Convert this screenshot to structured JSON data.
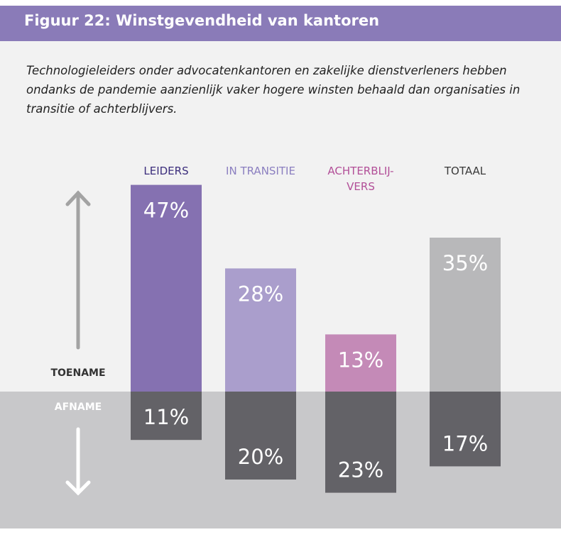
{
  "chart_data": {
    "type": "diverging_bar",
    "title": "Figuur 22: Winstgevendheid van kantoren",
    "subtitle": "Technologieleiders onder advocatenkantoren en zakelijke dienstverleners hebben ondanks de pandemie aanzienlijk vaker hogere winsten behaald dan organisaties in transitie of achterblijvers.",
    "up_label": "TOENAME",
    "down_label": "AFNAME",
    "categories": [
      "LEIDERS",
      "IN TRANSITIE",
      "ACHTERBLIJ-\nVERS",
      "TOTAAL"
    ],
    "category_colors": [
      "#3b2d7c",
      "#8b7fc0",
      "#b24f98",
      "#3a3a3a"
    ],
    "increase": {
      "values": [
        47,
        28,
        13,
        35
      ],
      "value_labels": [
        "47%",
        "28%",
        "13%",
        "35%"
      ],
      "colors": [
        "#8571b1",
        "#aa9ecc",
        "#c48ab7",
        "#b8b8ba"
      ]
    },
    "decrease": {
      "values": [
        11,
        20,
        23,
        17
      ],
      "value_labels": [
        "11%",
        "20%",
        "23%",
        "17%"
      ],
      "color": "#636267"
    }
  }
}
